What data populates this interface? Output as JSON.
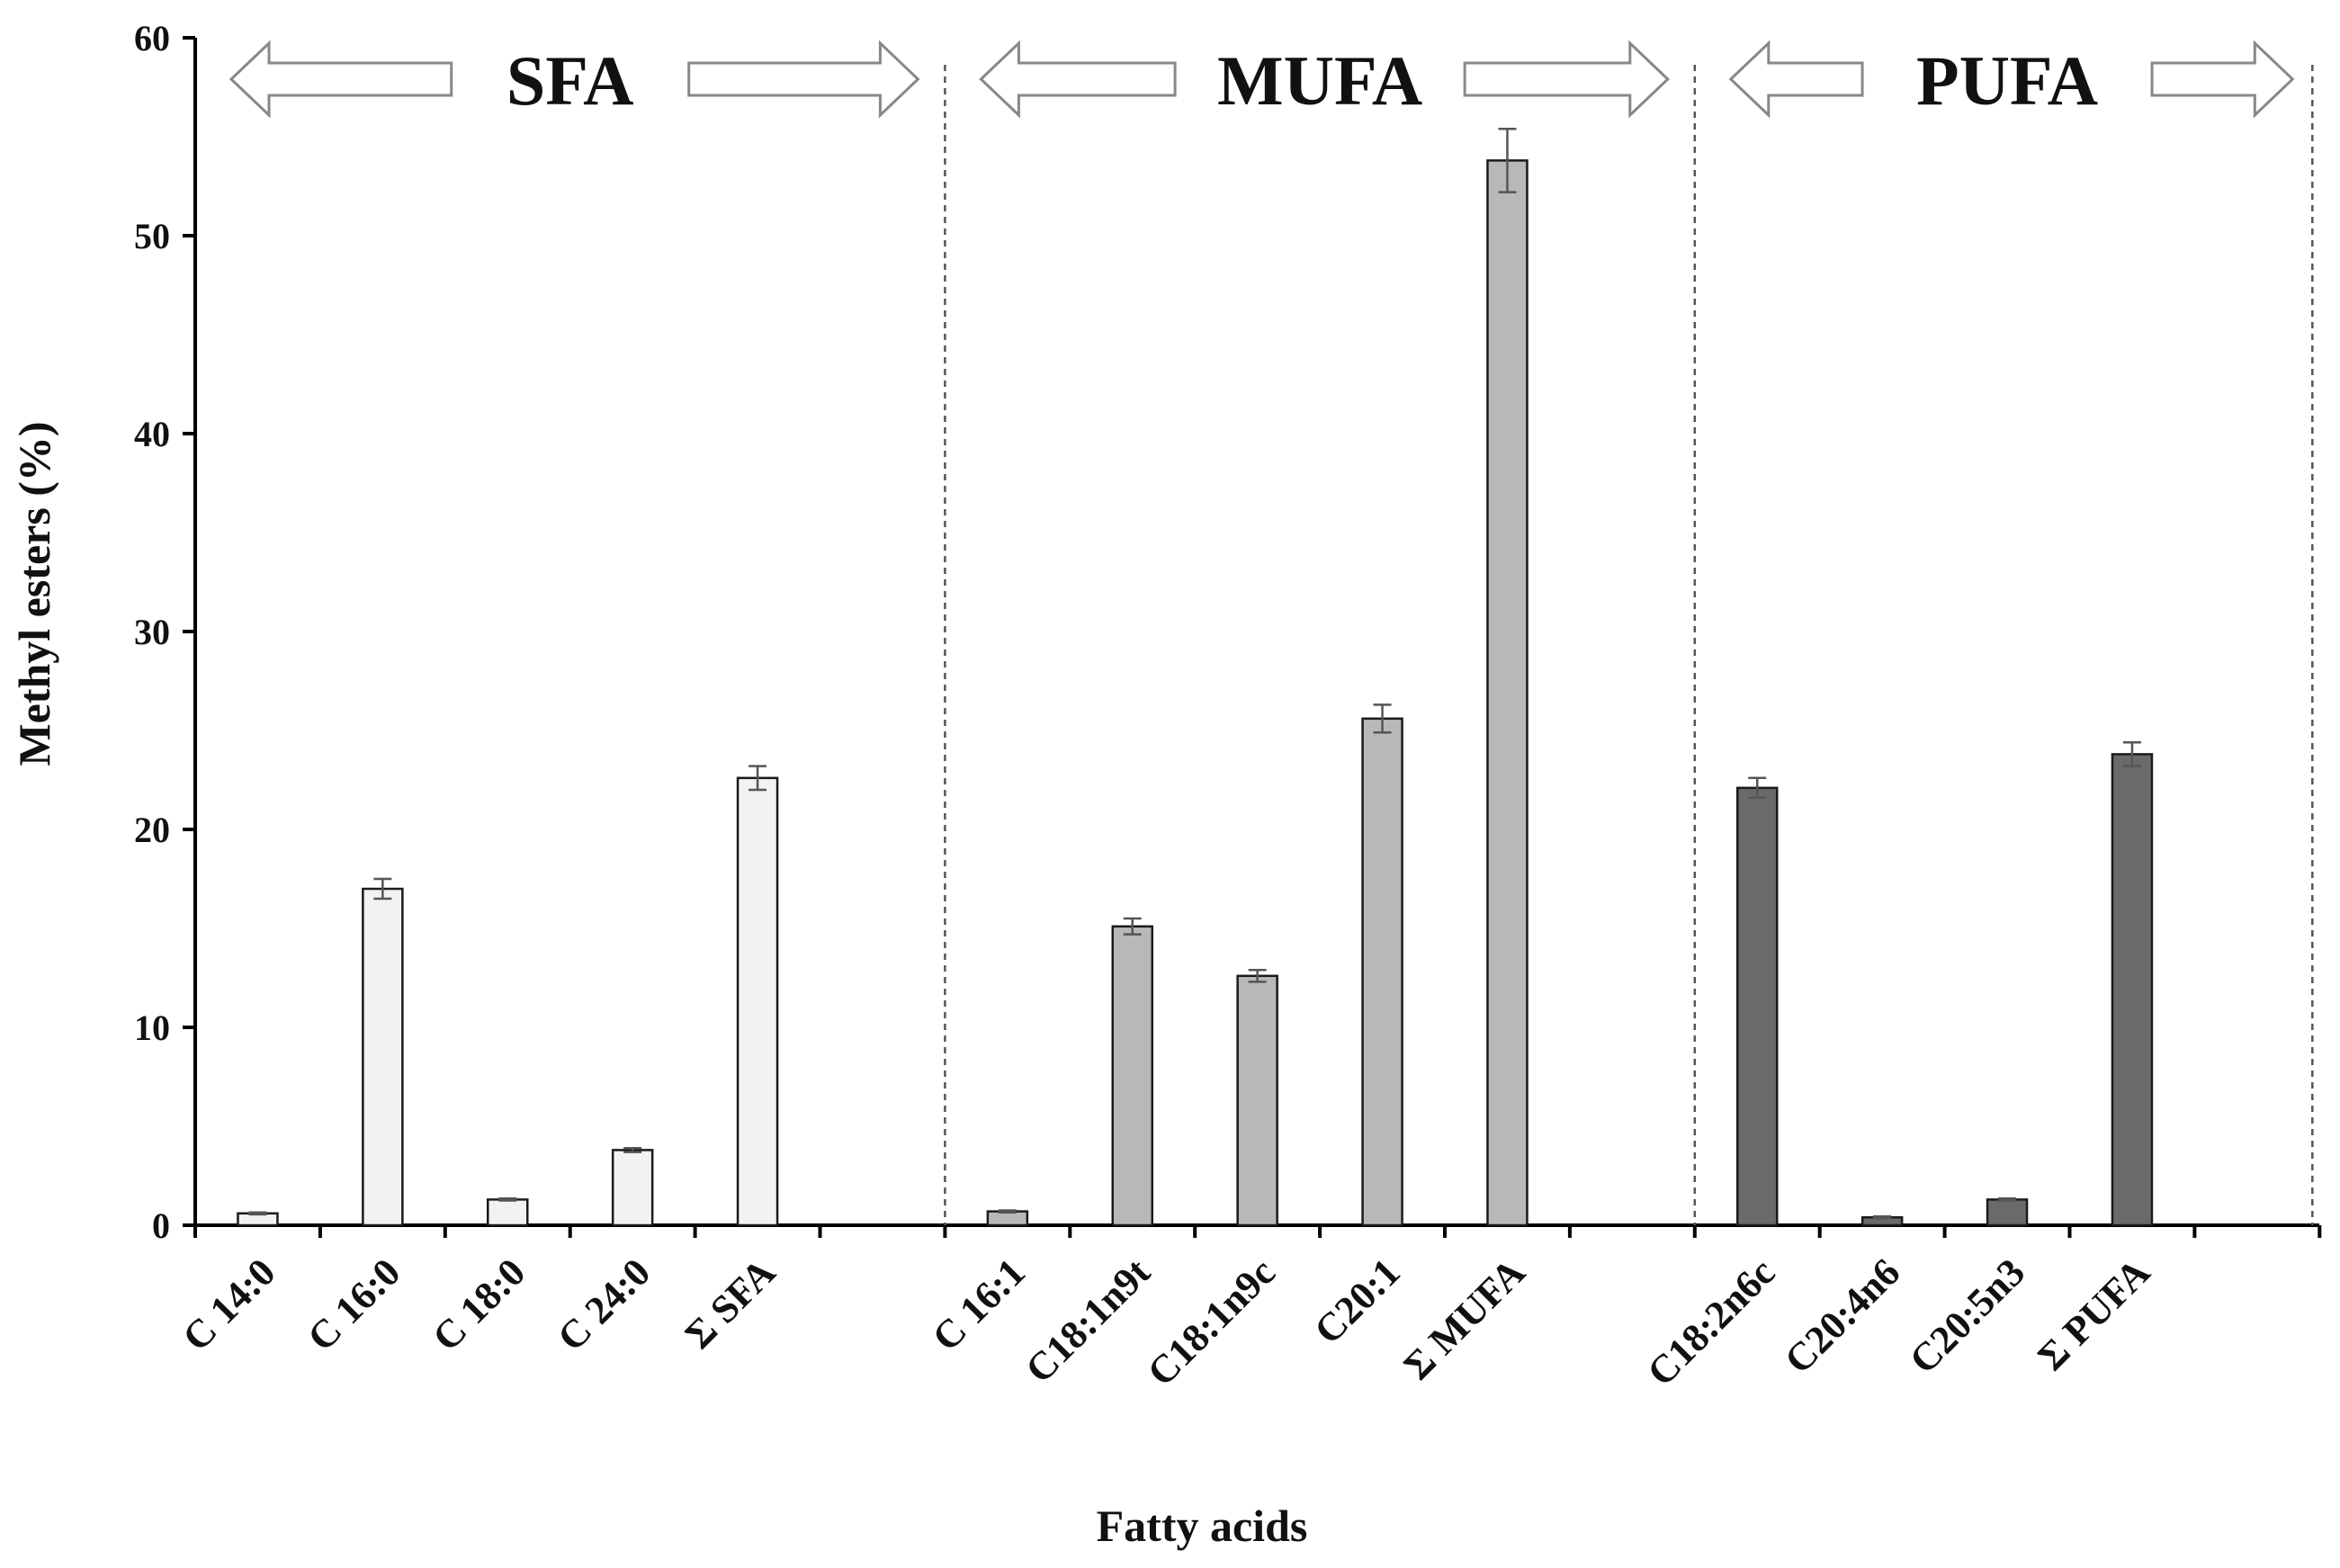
{
  "chart_data": {
    "type": "bar",
    "xlabel": "Fatty acids",
    "ylabel": "Methyl esters (%)",
    "ylim": [
      0,
      60
    ],
    "yticks": [
      0,
      10,
      20,
      30,
      40,
      50,
      60
    ],
    "grid": false,
    "groups": [
      {
        "name": "SFA",
        "color": "#f2f2f2",
        "bars": [
          {
            "category": "C 14:0",
            "value": 0.6,
            "error": 0.05
          },
          {
            "category": "C 16:0",
            "value": 17.0,
            "error": 0.5
          },
          {
            "category": "C 18:0",
            "value": 1.3,
            "error": 0.05
          },
          {
            "category": "C 24:0",
            "value": 3.8,
            "error": 0.1
          },
          {
            "category": "Σ SFA",
            "value": 22.6,
            "error": 0.6
          }
        ]
      },
      {
        "name": "MUFA",
        "color": "#b8b8b8",
        "bars": [
          {
            "category": "C 16:1",
            "value": 0.7,
            "error": 0.05
          },
          {
            "category": "C18:1n9t",
            "value": 15.1,
            "error": 0.4
          },
          {
            "category": "C18:1n9c",
            "value": 12.6,
            "error": 0.3
          },
          {
            "category": "C20:1",
            "value": 25.6,
            "error": 0.7
          },
          {
            "category": "Σ MUFA",
            "value": 53.8,
            "error": 1.6
          }
        ]
      },
      {
        "name": "PUFA",
        "color": "#6a6a6a",
        "bars": [
          {
            "category": "C18:2n6c",
            "value": 22.1,
            "error": 0.5
          },
          {
            "category": "C20:4n6",
            "value": 0.4,
            "error": 0.05
          },
          {
            "category": "C20:5n3",
            "value": 1.3,
            "error": 0.05
          },
          {
            "category": "Σ PUFA",
            "value": 23.8,
            "error": 0.6
          }
        ]
      }
    ]
  }
}
